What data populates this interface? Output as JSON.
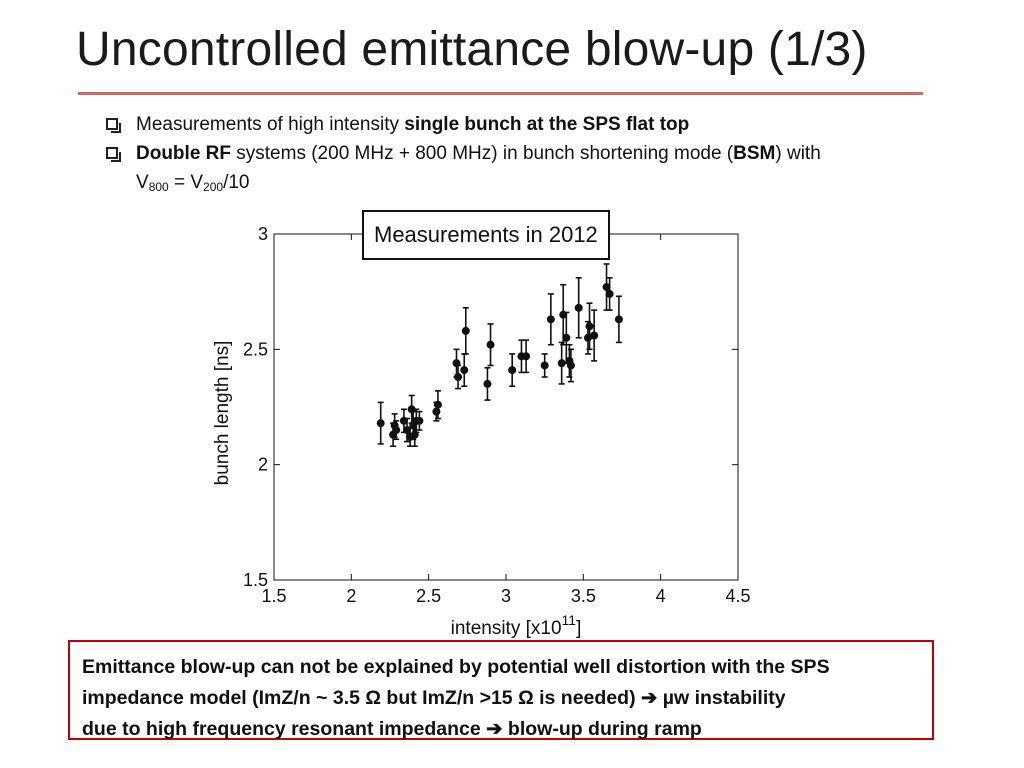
{
  "slide": {
    "title": "Uncontrolled emittance blow-up (1/3)"
  },
  "bullets": {
    "b1_text": "Measurements of high intensity ",
    "b1_bold": "single bunch at the SPS flat top",
    "b2_bold1": "Double RF",
    "b2_text1": " systems (200 MHz + 800 MHz) in bunch shortening mode (",
    "b2_bold2": "BSM",
    "b2_text2": ") with",
    "b2_v": "V",
    "b2_sub1": "800",
    "b2_eq": " = V",
    "b2_sub2": "200",
    "b2_tail": "/10"
  },
  "conclusion": {
    "line1": "Emittance blow-up can not be explained by potential well distortion with the SPS",
    "line2a": "impedance model (ImZ/n ~ 3.5 Ω but ImZ/n >15 Ω is needed) ",
    "arrow": "➔",
    "line2b": " µw instability",
    "line3a": "due to high frequency resonant impedance ",
    "line3b": " blow-up during ramp"
  },
  "chart_data": {
    "type": "scatter",
    "legend": "Measurements in 2012",
    "xlabel_main": "intensity [x10",
    "xlabel_exp": "11",
    "xlabel_close": "]",
    "ylabel": "bunch length [ns]",
    "xlim": [
      1.5,
      4.5
    ],
    "ylim": [
      1.5,
      3
    ],
    "xticks": [
      "1.5",
      "2",
      "2.5",
      "3",
      "3.5",
      "4",
      "4.5"
    ],
    "yticks": [
      "1.5",
      "2",
      "2.5",
      "3"
    ],
    "points": [
      {
        "x": 2.19,
        "y": 2.18,
        "err": 0.09
      },
      {
        "x": 2.27,
        "y": 2.13,
        "err": 0.05
      },
      {
        "x": 2.28,
        "y": 2.17,
        "err": 0.05
      },
      {
        "x": 2.29,
        "y": 2.15,
        "err": 0.04
      },
      {
        "x": 2.34,
        "y": 2.19,
        "err": 0.05
      },
      {
        "x": 2.36,
        "y": 2.15,
        "err": 0.05
      },
      {
        "x": 2.38,
        "y": 2.12,
        "err": 0.04
      },
      {
        "x": 2.39,
        "y": 2.24,
        "err": 0.06
      },
      {
        "x": 2.4,
        "y": 2.17,
        "err": 0.06
      },
      {
        "x": 2.41,
        "y": 2.13,
        "err": 0.05
      },
      {
        "x": 2.42,
        "y": 2.19,
        "err": 0.05
      },
      {
        "x": 2.44,
        "y": 2.19,
        "err": 0.04
      },
      {
        "x": 2.55,
        "y": 2.23,
        "err": 0.04
      },
      {
        "x": 2.56,
        "y": 2.26,
        "err": 0.06
      },
      {
        "x": 2.68,
        "y": 2.44,
        "err": 0.06
      },
      {
        "x": 2.69,
        "y": 2.38,
        "err": 0.05
      },
      {
        "x": 2.73,
        "y": 2.41,
        "err": 0.07
      },
      {
        "x": 2.74,
        "y": 2.58,
        "err": 0.1
      },
      {
        "x": 2.88,
        "y": 2.35,
        "err": 0.07
      },
      {
        "x": 2.9,
        "y": 2.52,
        "err": 0.09
      },
      {
        "x": 3.04,
        "y": 2.41,
        "err": 0.07
      },
      {
        "x": 3.1,
        "y": 2.47,
        "err": 0.07
      },
      {
        "x": 3.13,
        "y": 2.47,
        "err": 0.07
      },
      {
        "x": 3.25,
        "y": 2.43,
        "err": 0.05
      },
      {
        "x": 3.29,
        "y": 2.63,
        "err": 0.11
      },
      {
        "x": 3.36,
        "y": 2.44,
        "err": 0.09
      },
      {
        "x": 3.37,
        "y": 2.65,
        "err": 0.13
      },
      {
        "x": 3.39,
        "y": 2.55,
        "err": 0.11
      },
      {
        "x": 3.41,
        "y": 2.45,
        "err": 0.07
      },
      {
        "x": 3.42,
        "y": 2.43,
        "err": 0.07
      },
      {
        "x": 3.47,
        "y": 2.68,
        "err": 0.13
      },
      {
        "x": 3.53,
        "y": 2.55,
        "err": 0.07
      },
      {
        "x": 3.54,
        "y": 2.6,
        "err": 0.1
      },
      {
        "x": 3.57,
        "y": 2.56,
        "err": 0.11
      },
      {
        "x": 3.65,
        "y": 2.77,
        "err": 0.1
      },
      {
        "x": 3.67,
        "y": 2.74,
        "err": 0.07
      },
      {
        "x": 3.73,
        "y": 2.63,
        "err": 0.1
      }
    ]
  }
}
